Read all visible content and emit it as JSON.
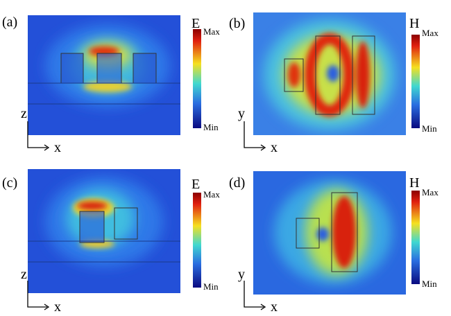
{
  "panels": [
    {
      "label": "(a)",
      "field": "E",
      "max": "Max",
      "min": "Min",
      "axis_v": "z",
      "axis_h": "x"
    },
    {
      "label": "(b)",
      "field": "H",
      "max": "Max",
      "min": "Min",
      "axis_v": "y",
      "axis_h": "x"
    },
    {
      "label": "(c)",
      "field": "E",
      "max": "Max",
      "min": "Min",
      "axis_v": "z",
      "axis_h": "x"
    },
    {
      "label": "(d)",
      "field": "H",
      "max": "Max",
      "min": "Min",
      "axis_v": "y",
      "axis_h": "x"
    }
  ]
}
